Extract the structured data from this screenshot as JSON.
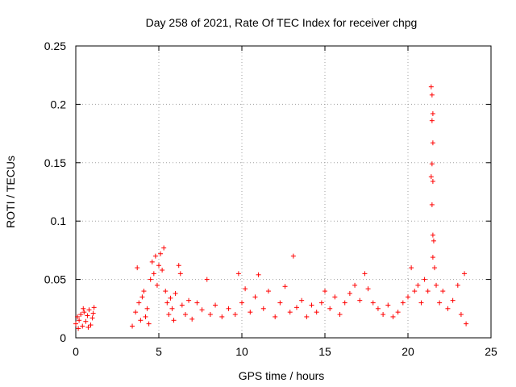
{
  "chart_data": {
    "type": "scatter",
    "title": "Day 258 of 2021, Rate Of TEC Index for receiver chpg",
    "xlabel": "GPS time / hours",
    "ylabel": "ROTI / TECUs",
    "xlim": [
      0,
      25
    ],
    "ylim": [
      0,
      0.25
    ],
    "xticks": [
      "0",
      "5",
      "10",
      "15",
      "20",
      "25"
    ],
    "yticks": [
      "0",
      "0.05",
      "0.1",
      "0.15",
      "0.2",
      "0.25"
    ],
    "grid": true,
    "marker": "+",
    "color": "#ff0000",
    "series": [
      {
        "name": "ROTI",
        "points": [
          [
            0.0,
            0.012
          ],
          [
            0.1,
            0.018
          ],
          [
            0.2,
            0.015
          ],
          [
            0.3,
            0.02
          ],
          [
            0.4,
            0.01
          ],
          [
            0.5,
            0.022
          ],
          [
            0.6,
            0.014
          ],
          [
            0.7,
            0.019
          ],
          [
            0.8,
            0.024
          ],
          [
            0.9,
            0.011
          ],
          [
            1.0,
            0.017
          ],
          [
            1.1,
            0.026
          ],
          [
            0.15,
            0.008
          ],
          [
            0.45,
            0.025
          ],
          [
            0.75,
            0.009
          ],
          [
            1.05,
            0.021
          ],
          [
            3.4,
            0.01
          ],
          [
            3.6,
            0.022
          ],
          [
            3.7,
            0.06
          ],
          [
            3.8,
            0.03
          ],
          [
            3.9,
            0.015
          ],
          [
            4.0,
            0.035
          ],
          [
            4.1,
            0.04
          ],
          [
            4.2,
            0.018
          ],
          [
            4.3,
            0.025
          ],
          [
            4.4,
            0.012
          ],
          [
            4.5,
            0.05
          ],
          [
            4.6,
            0.065
          ],
          [
            4.7,
            0.055
          ],
          [
            4.8,
            0.07
          ],
          [
            4.9,
            0.045
          ],
          [
            5.0,
            0.062
          ],
          [
            5.1,
            0.072
          ],
          [
            5.2,
            0.058
          ],
          [
            5.3,
            0.077
          ],
          [
            5.4,
            0.04
          ],
          [
            5.5,
            0.03
          ],
          [
            5.6,
            0.02
          ],
          [
            5.7,
            0.034
          ],
          [
            5.8,
            0.025
          ],
          [
            5.9,
            0.015
          ],
          [
            6.0,
            0.038
          ],
          [
            6.2,
            0.062
          ],
          [
            6.3,
            0.055
          ],
          [
            6.4,
            0.028
          ],
          [
            6.6,
            0.02
          ],
          [
            6.8,
            0.032
          ],
          [
            7.0,
            0.016
          ],
          [
            7.3,
            0.03
          ],
          [
            7.6,
            0.024
          ],
          [
            7.9,
            0.05
          ],
          [
            8.1,
            0.02
          ],
          [
            8.4,
            0.028
          ],
          [
            8.8,
            0.018
          ],
          [
            9.2,
            0.025
          ],
          [
            9.6,
            0.02
          ],
          [
            9.8,
            0.055
          ],
          [
            10.0,
            0.03
          ],
          [
            10.2,
            0.042
          ],
          [
            10.5,
            0.022
          ],
          [
            10.8,
            0.035
          ],
          [
            11.0,
            0.054
          ],
          [
            11.3,
            0.025
          ],
          [
            11.6,
            0.04
          ],
          [
            12.0,
            0.018
          ],
          [
            12.3,
            0.03
          ],
          [
            12.6,
            0.044
          ],
          [
            12.9,
            0.022
          ],
          [
            13.1,
            0.07
          ],
          [
            13.3,
            0.026
          ],
          [
            13.6,
            0.032
          ],
          [
            13.9,
            0.018
          ],
          [
            14.2,
            0.028
          ],
          [
            14.5,
            0.022
          ],
          [
            14.8,
            0.03
          ],
          [
            15.0,
            0.04
          ],
          [
            15.3,
            0.025
          ],
          [
            15.6,
            0.035
          ],
          [
            15.9,
            0.02
          ],
          [
            16.2,
            0.03
          ],
          [
            16.5,
            0.038
          ],
          [
            16.8,
            0.045
          ],
          [
            17.1,
            0.032
          ],
          [
            17.4,
            0.055
          ],
          [
            17.6,
            0.042
          ],
          [
            17.9,
            0.03
          ],
          [
            18.2,
            0.025
          ],
          [
            18.5,
            0.02
          ],
          [
            18.8,
            0.028
          ],
          [
            19.1,
            0.018
          ],
          [
            19.4,
            0.022
          ],
          [
            19.7,
            0.03
          ],
          [
            20.0,
            0.035
          ],
          [
            20.2,
            0.06
          ],
          [
            20.4,
            0.04
          ],
          [
            20.6,
            0.045
          ],
          [
            20.8,
            0.03
          ],
          [
            21.0,
            0.05
          ],
          [
            21.2,
            0.04
          ],
          [
            21.4,
            0.215
          ],
          [
            21.45,
            0.208
          ],
          [
            21.5,
            0.192
          ],
          [
            21.45,
            0.186
          ],
          [
            21.5,
            0.167
          ],
          [
            21.45,
            0.149
          ],
          [
            21.4,
            0.138
          ],
          [
            21.5,
            0.134
          ],
          [
            21.45,
            0.114
          ],
          [
            21.5,
            0.088
          ],
          [
            21.55,
            0.083
          ],
          [
            21.5,
            0.069
          ],
          [
            21.6,
            0.06
          ],
          [
            21.7,
            0.045
          ],
          [
            21.9,
            0.03
          ],
          [
            22.1,
            0.04
          ],
          [
            22.4,
            0.025
          ],
          [
            22.7,
            0.032
          ],
          [
            23.0,
            0.045
          ],
          [
            23.2,
            0.02
          ],
          [
            23.4,
            0.055
          ],
          [
            23.5,
            0.012
          ]
        ]
      }
    ]
  }
}
